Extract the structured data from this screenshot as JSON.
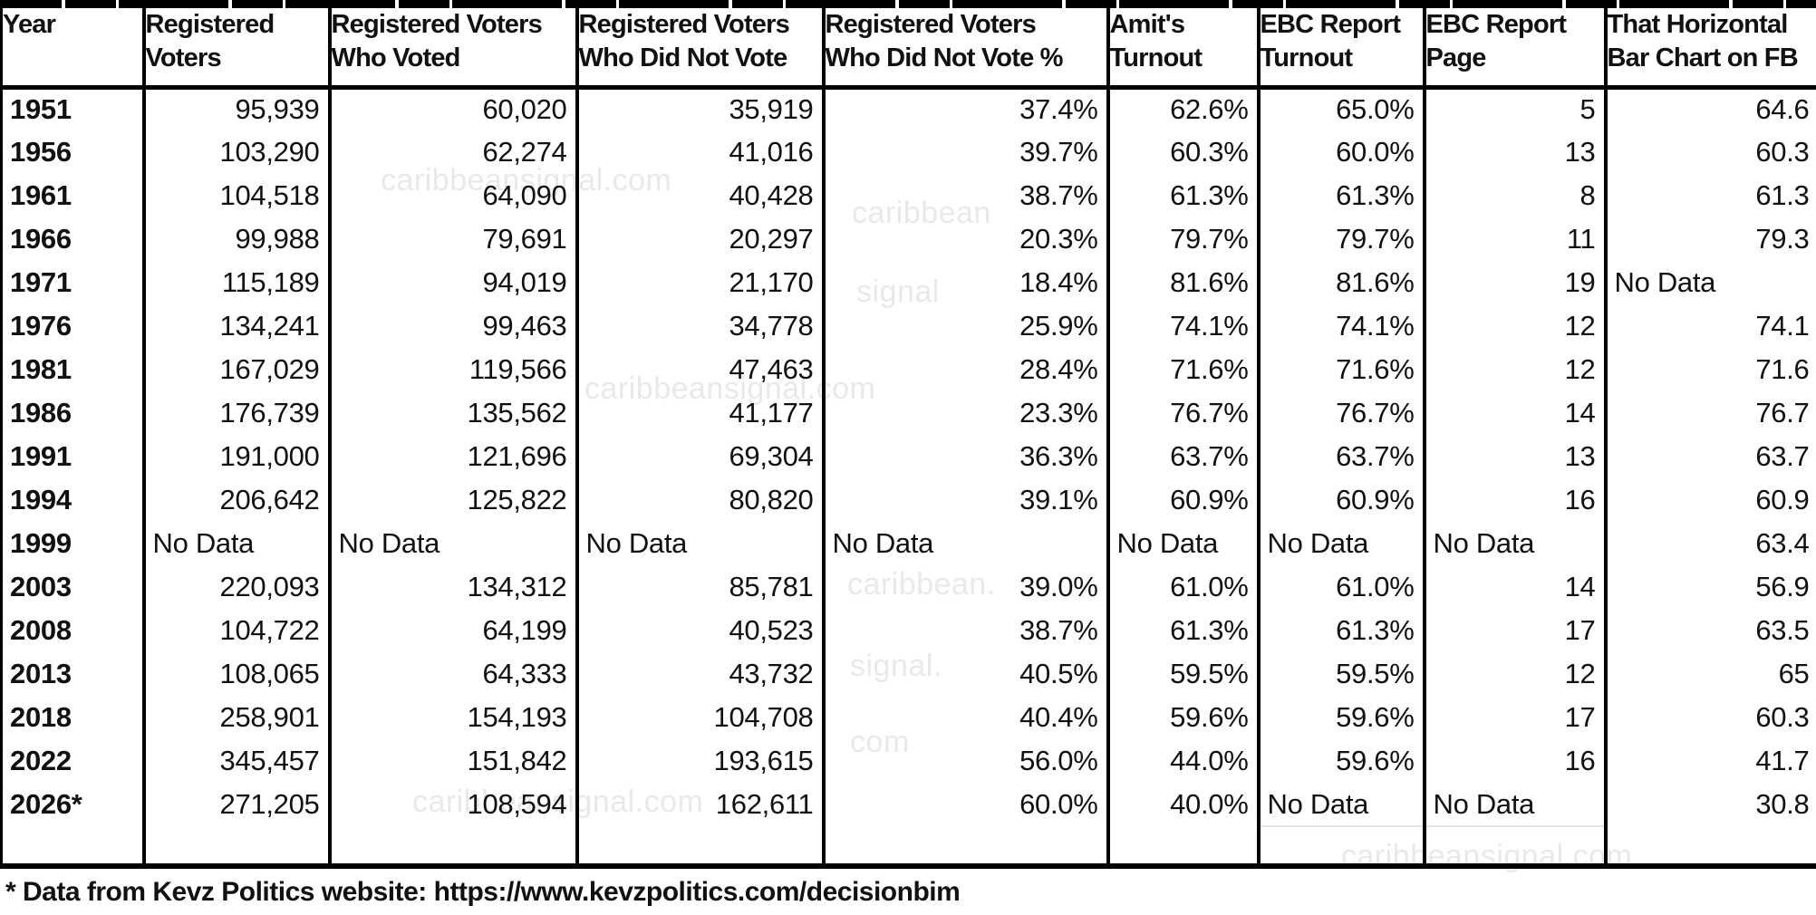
{
  "chart_data": {
    "type": "table",
    "columns": [
      {
        "line1": "Year",
        "line2": ""
      },
      {
        "line1": "Registered",
        "line2": "Voters"
      },
      {
        "line1": "Registered Voters",
        "line2": "Who Voted"
      },
      {
        "line1": "Registered Voters",
        "line2": "Who Did Not Vote"
      },
      {
        "line1": "Registered Voters",
        "line2": "Who Did Not Vote %"
      },
      {
        "line1": "Amit's",
        "line2": "Turnout"
      },
      {
        "line1": "EBC Report",
        "line2": "Turnout"
      },
      {
        "line1": "EBC Report",
        "line2": "Page"
      },
      {
        "line1": "That Horizontal",
        "line2": "Bar Chart on FB"
      }
    ],
    "rows": [
      [
        "1951",
        "95,939",
        "60,020",
        "35,919",
        "37.4%",
        "62.6%",
        "65.0%",
        "5",
        "64.6"
      ],
      [
        "1956",
        "103,290",
        "62,274",
        "41,016",
        "39.7%",
        "60.3%",
        "60.0%",
        "13",
        "60.3"
      ],
      [
        "1961",
        "104,518",
        "64,090",
        "40,428",
        "38.7%",
        "61.3%",
        "61.3%",
        "8",
        "61.3"
      ],
      [
        "1966",
        "99,988",
        "79,691",
        "20,297",
        "20.3%",
        "79.7%",
        "79.7%",
        "11",
        "79.3"
      ],
      [
        "1971",
        "115,189",
        "94,019",
        "21,170",
        "18.4%",
        "81.6%",
        "81.6%",
        "19",
        "No Data"
      ],
      [
        "1976",
        "134,241",
        "99,463",
        "34,778",
        "25.9%",
        "74.1%",
        "74.1%",
        "12",
        "74.1"
      ],
      [
        "1981",
        "167,029",
        "119,566",
        "47,463",
        "28.4%",
        "71.6%",
        "71.6%",
        "12",
        "71.6"
      ],
      [
        "1986",
        "176,739",
        "135,562",
        "41,177",
        "23.3%",
        "76.7%",
        "76.7%",
        "14",
        "76.7"
      ],
      [
        "1991",
        "191,000",
        "121,696",
        "69,304",
        "36.3%",
        "63.7%",
        "63.7%",
        "13",
        "63.7"
      ],
      [
        "1994",
        "206,642",
        "125,822",
        "80,820",
        "39.1%",
        "60.9%",
        "60.9%",
        "16",
        "60.9"
      ],
      [
        "1999",
        "No Data",
        "No Data",
        "No Data",
        "No Data",
        "No Data",
        "No Data",
        "No Data",
        "63.4"
      ],
      [
        "2003",
        "220,093",
        "134,312",
        "85,781",
        "39.0%",
        "61.0%",
        "61.0%",
        "14",
        "56.9"
      ],
      [
        "2008",
        "104,722",
        "64,199",
        "40,523",
        "38.7%",
        "61.3%",
        "61.3%",
        "17",
        "63.5"
      ],
      [
        "2013",
        "108,065",
        "64,333",
        "43,732",
        "40.5%",
        "59.5%",
        "59.5%",
        "12",
        "65"
      ],
      [
        "2018",
        "258,901",
        "154,193",
        "104,708",
        "40.4%",
        "59.6%",
        "59.6%",
        "17",
        "60.3"
      ],
      [
        "2022",
        "345,457",
        "151,842",
        "193,615",
        "56.0%",
        "44.0%",
        "59.6%",
        "16",
        "41.7"
      ],
      [
        "2026*",
        "271,205",
        "108,594",
        "162,611",
        "60.0%",
        "40.0%",
        "No Data",
        "No Data",
        "30.8"
      ]
    ]
  },
  "footnote": "* Data from Kevz Politics website: https://www.kevzpolitics.com/decisionbim",
  "watermarks": [
    "caribbeansignal.com",
    "caribbean",
    "signal",
    "caribbeansignal.com",
    "caribbean.",
    "signal.",
    "com",
    "caribbeansignal.com",
    "caribbeansignal.com"
  ],
  "colors": {
    "background": "#ffffff",
    "text": "#111111",
    "border": "#000000",
    "watermark": "#e9e9e9"
  }
}
